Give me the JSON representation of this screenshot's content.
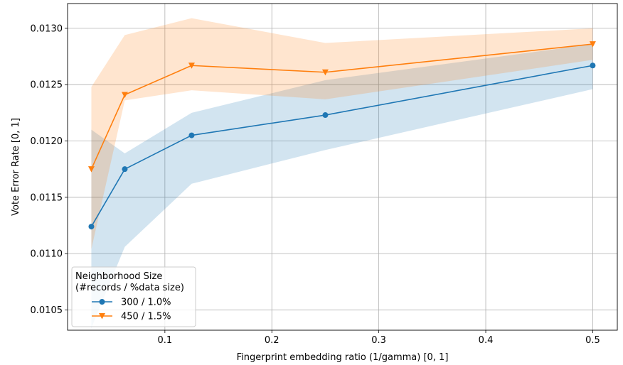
{
  "chart_data": {
    "type": "line",
    "xlabel": "Fingerprint embedding ratio (1/gamma) [0, 1]",
    "ylabel": "Vote Error Rate [0, 1]",
    "xlim": [
      0.009,
      0.523
    ],
    "ylim": [
      0.01032,
      0.01322
    ],
    "xticks": [
      {
        "value": 0.1,
        "label": "0.1"
      },
      {
        "value": 0.2,
        "label": "0.2"
      },
      {
        "value": 0.3,
        "label": "0.3"
      },
      {
        "value": 0.4,
        "label": "0.4"
      },
      {
        "value": 0.5,
        "label": "0.5"
      }
    ],
    "yticks": [
      {
        "value": 0.0105,
        "label": "0.0105"
      },
      {
        "value": 0.011,
        "label": "0.0110"
      },
      {
        "value": 0.0115,
        "label": "0.0115"
      },
      {
        "value": 0.012,
        "label": "0.0120"
      },
      {
        "value": 0.0125,
        "label": "0.0125"
      },
      {
        "value": 0.013,
        "label": "0.0130"
      }
    ],
    "grid": true,
    "legend": {
      "position": "lower-left",
      "title_lines": [
        "Neighborhood Size",
        "(#records / %data size)"
      ]
    },
    "series": [
      {
        "name": "300 / 1.0%",
        "color": "#1f77b4",
        "band_color": "#1f77b4",
        "marker": "circle",
        "x": [
          0.03125,
          0.0625,
          0.125,
          0.25,
          0.5
        ],
        "y": [
          0.01124,
          0.01175,
          0.01205,
          0.01223,
          0.01267
        ],
        "lower": [
          0.01034,
          0.01106,
          0.01162,
          0.01192,
          0.01246
        ],
        "upper": [
          0.0121,
          0.01189,
          0.01225,
          0.01254,
          0.01286
        ]
      },
      {
        "name": "450 / 1.5%",
        "color": "#ff7f0e",
        "band_color": "#ff7f0e",
        "marker": "triangle-down",
        "x": [
          0.03125,
          0.0625,
          0.125,
          0.25,
          0.5
        ],
        "y": [
          0.01175,
          0.01241,
          0.01267,
          0.01261,
          0.01286
        ],
        "lower": [
          0.01104,
          0.01236,
          0.01245,
          0.01237,
          0.01272
        ],
        "upper": [
          0.01248,
          0.01294,
          0.01309,
          0.01287,
          0.013
        ]
      }
    ]
  }
}
